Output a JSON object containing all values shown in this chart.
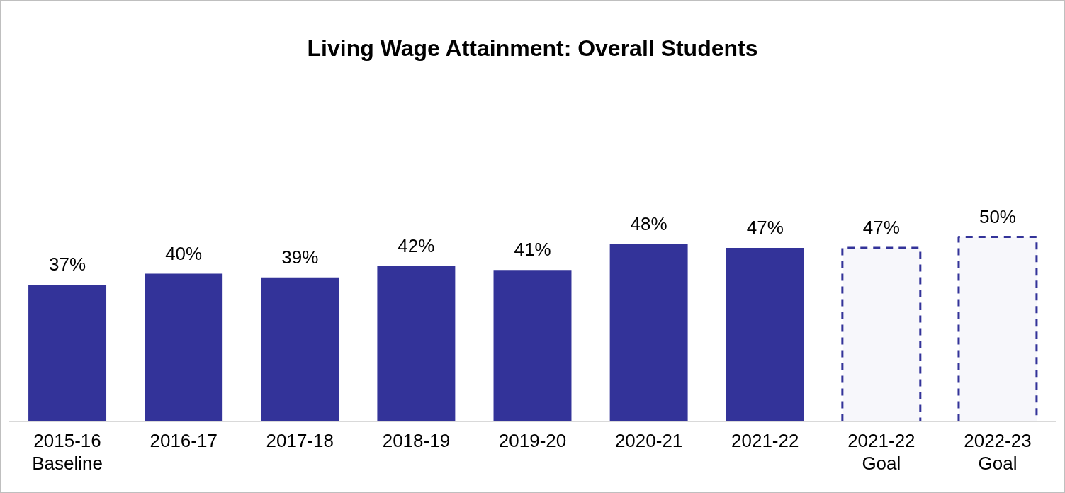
{
  "chart_data": {
    "type": "bar",
    "title": "Living Wage Attainment: Overall Students",
    "categories": [
      "2015-16 Baseline",
      "2016-17",
      "2017-18",
      "2018-19",
      "2019-20",
      "2020-21",
      "2021-22",
      "2021-22 Goal",
      "2022-23 Goal"
    ],
    "series": [
      {
        "color": "#333399",
        "values": [
          37,
          40,
          39,
          42,
          41,
          48,
          47,
          null,
          null
        ],
        "value_labels": [
          "37%",
          "40%",
          "39%",
          "42%",
          "41%",
          "48%",
          "47%",
          null,
          null
        ]
      },
      {
        "color": "#333399",
        "line_style": "dashed",
        "values": [
          null,
          null,
          null,
          null,
          null,
          null,
          null,
          47,
          50
        ],
        "value_labels": [
          null,
          null,
          null,
          null,
          null,
          null,
          null,
          "47%",
          "50%"
        ]
      }
    ],
    "stacked": true,
    "tick_labels": "x",
    "grid": false,
    "legend": false
  }
}
